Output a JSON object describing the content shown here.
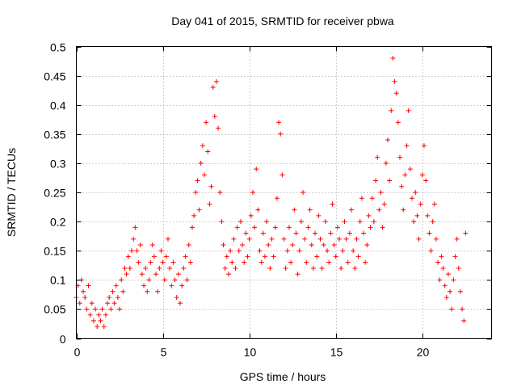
{
  "chart_data": {
    "type": "scatter",
    "title": "Day 041 of 2015, SRMTID for receiver pbwa",
    "xlabel": "GPS time / hours",
    "ylabel": "SRMTID / TECUs",
    "xlim": [
      0,
      24
    ],
    "ylim": [
      0,
      0.5
    ],
    "xticks": [
      0,
      5,
      10,
      15,
      20
    ],
    "xtick_labels": [
      "0",
      "5",
      "10",
      "15",
      "20"
    ],
    "yticks": [
      0,
      0.05,
      0.1,
      0.15,
      0.2,
      0.25,
      0.3,
      0.35,
      0.4,
      0.45,
      0.5
    ],
    "ytick_labels": [
      "0",
      "0.05",
      "0.1",
      "0.15",
      "0.2",
      "0.25",
      "0.3",
      "0.35",
      "0.4",
      "0.45",
      "0.5"
    ],
    "grid": true,
    "marker": "plus",
    "point_color": "#ff0000",
    "series": [
      {
        "name": "SRMTID",
        "points": [
          [
            0.0,
            0.07
          ],
          [
            0.1,
            0.09
          ],
          [
            0.2,
            0.06
          ],
          [
            0.3,
            0.1
          ],
          [
            0.4,
            0.08
          ],
          [
            0.5,
            0.07
          ],
          [
            0.6,
            0.05
          ],
          [
            0.7,
            0.09
          ],
          [
            0.8,
            0.04
          ],
          [
            0.9,
            0.06
          ],
          [
            1.0,
            0.03
          ],
          [
            1.1,
            0.05
          ],
          [
            1.2,
            0.02
          ],
          [
            1.3,
            0.04
          ],
          [
            1.4,
            0.03
          ],
          [
            1.5,
            0.05
          ],
          [
            1.6,
            0.02
          ],
          [
            1.7,
            0.04
          ],
          [
            1.8,
            0.06
          ],
          [
            1.9,
            0.07
          ],
          [
            2.0,
            0.05
          ],
          [
            2.1,
            0.08
          ],
          [
            2.2,
            0.06
          ],
          [
            2.3,
            0.09
          ],
          [
            2.4,
            0.07
          ],
          [
            2.5,
            0.05
          ],
          [
            2.6,
            0.1
          ],
          [
            2.7,
            0.08
          ],
          [
            2.8,
            0.12
          ],
          [
            2.9,
            0.11
          ],
          [
            3.0,
            0.14
          ],
          [
            3.1,
            0.12
          ],
          [
            3.2,
            0.15
          ],
          [
            3.3,
            0.17
          ],
          [
            3.4,
            0.19
          ],
          [
            3.5,
            0.15
          ],
          [
            3.6,
            0.13
          ],
          [
            3.7,
            0.16
          ],
          [
            3.8,
            0.11
          ],
          [
            3.9,
            0.09
          ],
          [
            4.0,
            0.12
          ],
          [
            4.1,
            0.08
          ],
          [
            4.2,
            0.1
          ],
          [
            4.3,
            0.13
          ],
          [
            4.4,
            0.16
          ],
          [
            4.5,
            0.14
          ],
          [
            4.6,
            0.11
          ],
          [
            4.7,
            0.08
          ],
          [
            4.8,
            0.12
          ],
          [
            4.9,
            0.15
          ],
          [
            5.0,
            0.13
          ],
          [
            5.1,
            0.1
          ],
          [
            5.2,
            0.14
          ],
          [
            5.3,
            0.17
          ],
          [
            5.4,
            0.12
          ],
          [
            5.5,
            0.09
          ],
          [
            5.6,
            0.13
          ],
          [
            5.7,
            0.1
          ],
          [
            5.8,
            0.07
          ],
          [
            5.9,
            0.11
          ],
          [
            6.0,
            0.06
          ],
          [
            6.1,
            0.09
          ],
          [
            6.2,
            0.12
          ],
          [
            6.3,
            0.14
          ],
          [
            6.4,
            0.1
          ],
          [
            6.5,
            0.16
          ],
          [
            6.6,
            0.13
          ],
          [
            6.7,
            0.19
          ],
          [
            6.8,
            0.21
          ],
          [
            6.9,
            0.25
          ],
          [
            7.0,
            0.27
          ],
          [
            7.1,
            0.22
          ],
          [
            7.2,
            0.3
          ],
          [
            7.3,
            0.33
          ],
          [
            7.4,
            0.28
          ],
          [
            7.5,
            0.37
          ],
          [
            7.6,
            0.32
          ],
          [
            7.7,
            0.23
          ],
          [
            7.8,
            0.26
          ],
          [
            7.9,
            0.43
          ],
          [
            8.0,
            0.38
          ],
          [
            8.1,
            0.44
          ],
          [
            8.2,
            0.36
          ],
          [
            8.3,
            0.25
          ],
          [
            8.4,
            0.2
          ],
          [
            8.5,
            0.16
          ],
          [
            8.6,
            0.12
          ],
          [
            8.7,
            0.14
          ],
          [
            8.8,
            0.11
          ],
          [
            8.9,
            0.15
          ],
          [
            9.0,
            0.13
          ],
          [
            9.1,
            0.17
          ],
          [
            9.2,
            0.12
          ],
          [
            9.3,
            0.19
          ],
          [
            9.4,
            0.15
          ],
          [
            9.5,
            0.2
          ],
          [
            9.6,
            0.16
          ],
          [
            9.7,
            0.13
          ],
          [
            9.8,
            0.18
          ],
          [
            9.9,
            0.14
          ],
          [
            10.0,
            0.17
          ],
          [
            10.1,
            0.21
          ],
          [
            10.2,
            0.25
          ],
          [
            10.3,
            0.19
          ],
          [
            10.4,
            0.29
          ],
          [
            10.5,
            0.22
          ],
          [
            10.6,
            0.15
          ],
          [
            10.7,
            0.13
          ],
          [
            10.8,
            0.18
          ],
          [
            10.9,
            0.14
          ],
          [
            11.0,
            0.2
          ],
          [
            11.1,
            0.16
          ],
          [
            11.2,
            0.12
          ],
          [
            11.3,
            0.17
          ],
          [
            11.4,
            0.14
          ],
          [
            11.5,
            0.19
          ],
          [
            11.6,
            0.24
          ],
          [
            11.7,
            0.37
          ],
          [
            11.8,
            0.35
          ],
          [
            11.9,
            0.28
          ],
          [
            12.0,
            0.17
          ],
          [
            12.1,
            0.12
          ],
          [
            12.2,
            0.15
          ],
          [
            12.3,
            0.19
          ],
          [
            12.4,
            0.13
          ],
          [
            12.5,
            0.16
          ],
          [
            12.6,
            0.22
          ],
          [
            12.7,
            0.18
          ],
          [
            12.8,
            0.11
          ],
          [
            12.9,
            0.15
          ],
          [
            13.0,
            0.2
          ],
          [
            13.1,
            0.25
          ],
          [
            13.2,
            0.17
          ],
          [
            13.3,
            0.13
          ],
          [
            13.4,
            0.19
          ],
          [
            13.5,
            0.22
          ],
          [
            13.6,
            0.16
          ],
          [
            13.7,
            0.12
          ],
          [
            13.8,
            0.18
          ],
          [
            13.9,
            0.14
          ],
          [
            14.0,
            0.21
          ],
          [
            14.1,
            0.17
          ],
          [
            14.2,
            0.12
          ],
          [
            14.3,
            0.16
          ],
          [
            14.4,
            0.2
          ],
          [
            14.5,
            0.15
          ],
          [
            14.6,
            0.13
          ],
          [
            14.7,
            0.18
          ],
          [
            14.8,
            0.23
          ],
          [
            14.9,
            0.16
          ],
          [
            15.0,
            0.14
          ],
          [
            15.1,
            0.19
          ],
          [
            15.2,
            0.17
          ],
          [
            15.3,
            0.12
          ],
          [
            15.4,
            0.15
          ],
          [
            15.5,
            0.2
          ],
          [
            15.6,
            0.17
          ],
          [
            15.7,
            0.13
          ],
          [
            15.8,
            0.18
          ],
          [
            15.9,
            0.22
          ],
          [
            16.0,
            0.15
          ],
          [
            16.1,
            0.12
          ],
          [
            16.2,
            0.17
          ],
          [
            16.3,
            0.14
          ],
          [
            16.4,
            0.2
          ],
          [
            16.5,
            0.24
          ],
          [
            16.6,
            0.18
          ],
          [
            16.7,
            0.13
          ],
          [
            16.8,
            0.16
          ],
          [
            16.9,
            0.21
          ],
          [
            17.0,
            0.19
          ],
          [
            17.1,
            0.24
          ],
          [
            17.2,
            0.2
          ],
          [
            17.3,
            0.27
          ],
          [
            17.4,
            0.31
          ],
          [
            17.5,
            0.22
          ],
          [
            17.6,
            0.25
          ],
          [
            17.7,
            0.19
          ],
          [
            17.8,
            0.23
          ],
          [
            17.9,
            0.3
          ],
          [
            18.0,
            0.34
          ],
          [
            18.1,
            0.27
          ],
          [
            18.2,
            0.39
          ],
          [
            18.3,
            0.48
          ],
          [
            18.4,
            0.44
          ],
          [
            18.5,
            0.42
          ],
          [
            18.6,
            0.37
          ],
          [
            18.7,
            0.31
          ],
          [
            18.8,
            0.26
          ],
          [
            18.9,
            0.22
          ],
          [
            19.0,
            0.28
          ],
          [
            19.1,
            0.33
          ],
          [
            19.2,
            0.39
          ],
          [
            19.3,
            0.29
          ],
          [
            19.4,
            0.24
          ],
          [
            19.5,
            0.2
          ],
          [
            19.6,
            0.25
          ],
          [
            19.7,
            0.21
          ],
          [
            19.8,
            0.17
          ],
          [
            19.9,
            0.23
          ],
          [
            20.0,
            0.28
          ],
          [
            20.1,
            0.33
          ],
          [
            20.2,
            0.27
          ],
          [
            20.3,
            0.21
          ],
          [
            20.4,
            0.18
          ],
          [
            20.5,
            0.15
          ],
          [
            20.6,
            0.2
          ],
          [
            20.7,
            0.23
          ],
          [
            20.8,
            0.17
          ],
          [
            20.9,
            0.13
          ],
          [
            21.0,
            0.1
          ],
          [
            21.1,
            0.14
          ],
          [
            21.2,
            0.12
          ],
          [
            21.3,
            0.09
          ],
          [
            21.4,
            0.07
          ],
          [
            21.5,
            0.11
          ],
          [
            21.6,
            0.08
          ],
          [
            21.7,
            0.05
          ],
          [
            21.8,
            0.1
          ],
          [
            21.9,
            0.14
          ],
          [
            22.0,
            0.17
          ],
          [
            22.1,
            0.12
          ],
          [
            22.2,
            0.08
          ],
          [
            22.3,
            0.05
          ],
          [
            22.4,
            0.03
          ],
          [
            22.5,
            0.18
          ]
        ]
      }
    ]
  }
}
